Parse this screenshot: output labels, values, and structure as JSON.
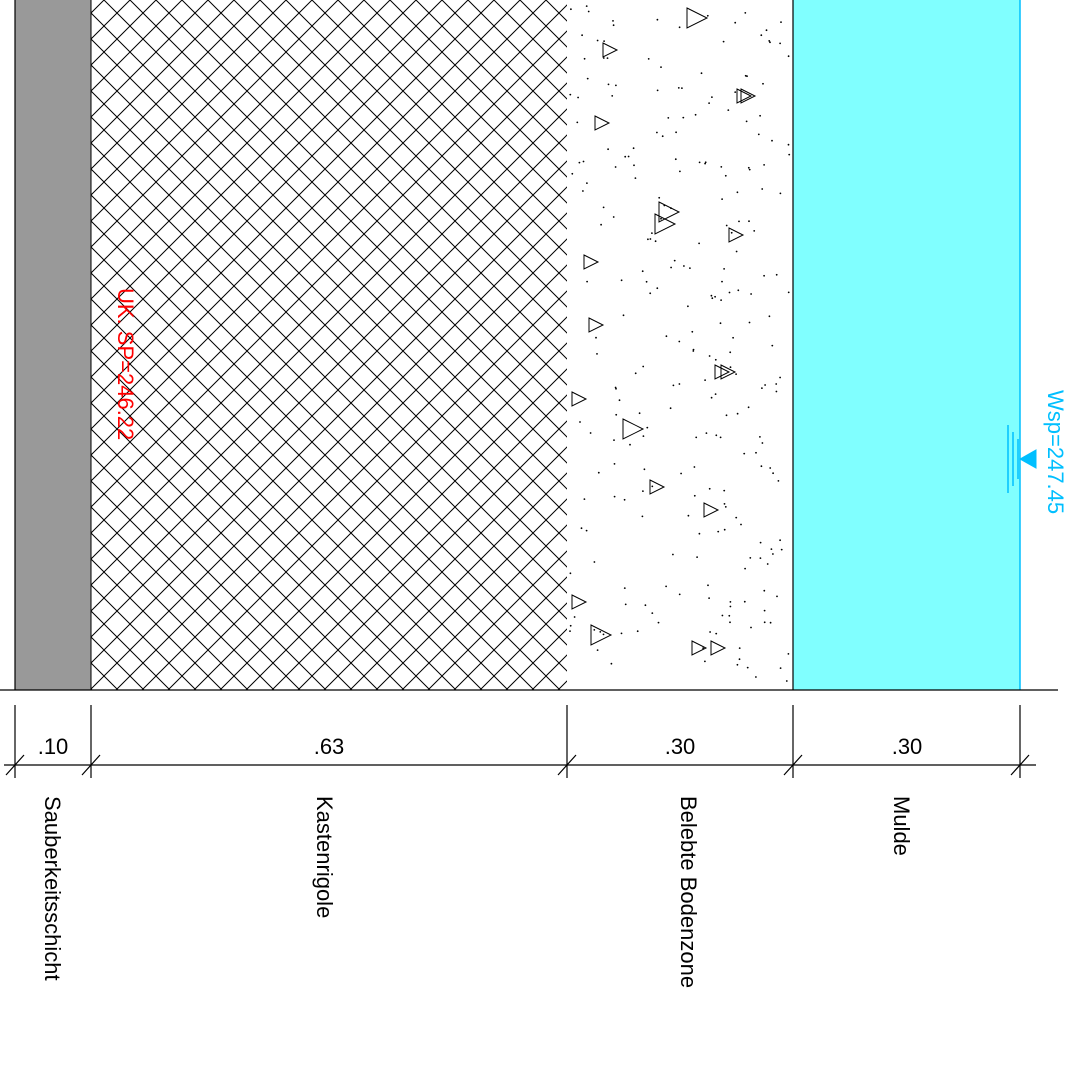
{
  "layers": [
    {
      "name": "Sauberkeitsschicht",
      "thickness": ".10"
    },
    {
      "name": "Kastenrigole",
      "thickness": ".63"
    },
    {
      "name": "Belebte Bodenzone",
      "thickness": ".30"
    },
    {
      "name": "Mulde",
      "thickness": ".30"
    }
  ],
  "annotations": {
    "uk_sp": "UK. SP=246.22",
    "wsp": "Wsp=247.45"
  },
  "colors": {
    "sauberkeitsschicht_fill": "#999999",
    "water_fill": "#80FFFF",
    "water_outline": "#00BFFF",
    "uk_sp_text": "#FF0000",
    "wsp_text": "#00BFFF",
    "line": "#000000"
  },
  "icons": {
    "water_level": "water-level-triangle-icon"
  }
}
